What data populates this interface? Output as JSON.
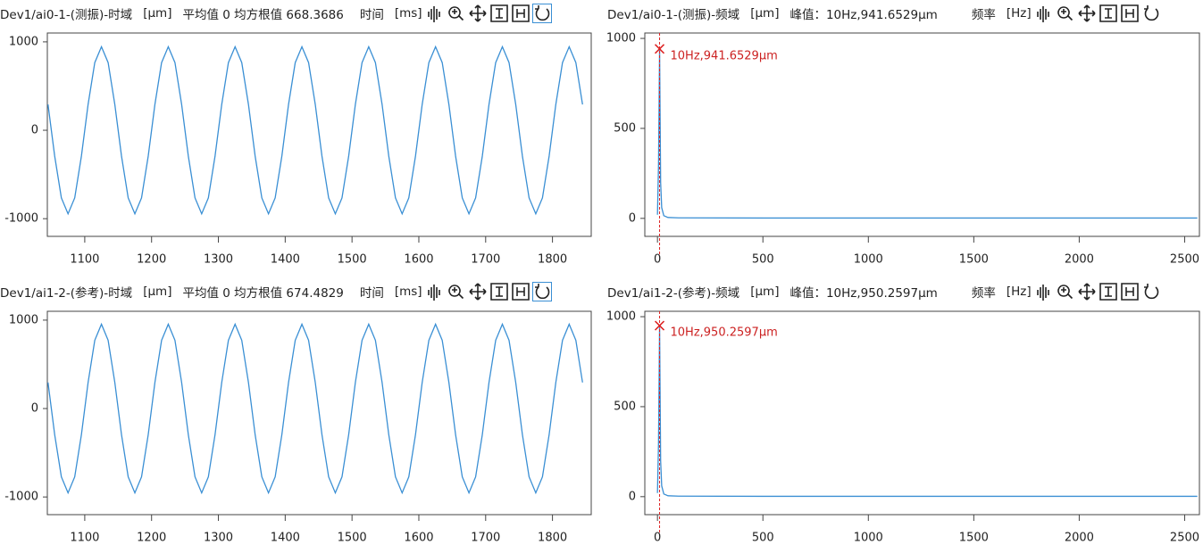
{
  "chart_data": [
    {
      "type": "line",
      "title": "Dev1/ai0-1-(测振)-时域",
      "unit": "[μm]",
      "info": "平均值 0 均方根值 668.3686",
      "x_label": "时间",
      "x_unit": "[ms]",
      "x": [
        1045,
        1055,
        1065,
        1075,
        1085,
        1095,
        1105,
        1115,
        1125,
        1135,
        1145,
        1155,
        1165,
        1175,
        1185,
        1195,
        1205,
        1215,
        1225,
        1235,
        1245,
        1255,
        1265,
        1275,
        1285,
        1295,
        1305,
        1315,
        1325,
        1335,
        1345,
        1355,
        1365,
        1375,
        1385,
        1395,
        1405,
        1415,
        1425,
        1435,
        1445,
        1455,
        1465,
        1475,
        1485,
        1495,
        1505,
        1515,
        1525,
        1535,
        1545,
        1555,
        1565,
        1575,
        1585,
        1595,
        1605,
        1615,
        1625,
        1635,
        1645,
        1655,
        1665,
        1675,
        1685,
        1695,
        1705,
        1715,
        1725,
        1735,
        1745,
        1755,
        1765,
        1775,
        1785,
        1795,
        1805,
        1815,
        1825,
        1835,
        1845
      ],
      "series": [
        {
          "color": "#3a8fd4",
          "values": [
            292,
            -292,
            -765,
            -945,
            -765,
            -292,
            292,
            765,
            945,
            765,
            292,
            -292,
            -765,
            -945,
            -765,
            -292,
            292,
            765,
            945,
            765,
            292,
            -292,
            -765,
            -945,
            -765,
            -292,
            292,
            765,
            945,
            765,
            292,
            -292,
            -765,
            -945,
            -765,
            -292,
            292,
            765,
            945,
            765,
            292,
            -292,
            -765,
            -945,
            -765,
            -292,
            292,
            765,
            945,
            765,
            292,
            -292,
            -765,
            -945,
            -765,
            -292,
            292,
            765,
            945,
            765,
            292,
            -292,
            -765,
            -945,
            -765,
            -292,
            292,
            765,
            945,
            765,
            292,
            -292,
            -765,
            -945,
            -765,
            -292,
            292,
            765,
            945,
            765,
            292
          ]
        }
      ],
      "xlim": [
        1044,
        1858
      ],
      "xticks": [
        1100,
        1200,
        1300,
        1400,
        1500,
        1600,
        1700,
        1800
      ],
      "ylim": [
        -1200,
        1100
      ],
      "yticks": [
        -1000,
        0,
        1000
      ]
    },
    {
      "type": "line",
      "title": "Dev1/ai0-1-(测振)-频域",
      "unit": "[μm]",
      "info": "峰值：10Hz,941.6529μm",
      "x_label": "频率",
      "x_unit": "[Hz]",
      "x": [
        0,
        5,
        10,
        15,
        20,
        30,
        50,
        100,
        500,
        1000,
        1500,
        2000,
        2560
      ],
      "series": [
        {
          "color": "#3a8fd4",
          "values": [
            20,
            300,
            941.6529,
            200,
            60,
            15,
            5,
            3,
            2,
            2,
            2,
            2,
            2
          ]
        }
      ],
      "peak": {
        "x": 10,
        "y": 941.6529,
        "label": "10Hz,941.6529μm"
      },
      "xlim": [
        -60,
        2570
      ],
      "xticks": [
        0,
        500,
        1000,
        1500,
        2000,
        2500
      ],
      "ylim": [
        -100,
        1030
      ],
      "yticks": [
        0,
        500,
        1000
      ]
    },
    {
      "type": "line",
      "title": "Dev1/ai1-2-(参考)-时域",
      "unit": "[μm]",
      "info": "平均值 0 均方根值 674.4829",
      "x_label": "时间",
      "x_unit": "[ms]",
      "x": [
        1045,
        1055,
        1065,
        1075,
        1085,
        1095,
        1105,
        1115,
        1125,
        1135,
        1145,
        1155,
        1165,
        1175,
        1185,
        1195,
        1205,
        1215,
        1225,
        1235,
        1245,
        1255,
        1265,
        1275,
        1285,
        1295,
        1305,
        1315,
        1325,
        1335,
        1345,
        1355,
        1365,
        1375,
        1385,
        1395,
        1405,
        1415,
        1425,
        1435,
        1445,
        1455,
        1465,
        1475,
        1485,
        1495,
        1505,
        1515,
        1525,
        1535,
        1545,
        1555,
        1565,
        1575,
        1585,
        1595,
        1605,
        1615,
        1625,
        1635,
        1645,
        1655,
        1665,
        1675,
        1685,
        1695,
        1705,
        1715,
        1725,
        1735,
        1745,
        1755,
        1765,
        1775,
        1785,
        1795,
        1805,
        1815,
        1825,
        1835,
        1845
      ],
      "series": [
        {
          "color": "#3a8fd4",
          "values": [
            295,
            -295,
            -772,
            -954,
            -772,
            -295,
            295,
            772,
            954,
            772,
            295,
            -295,
            -772,
            -954,
            -772,
            -295,
            295,
            772,
            954,
            772,
            295,
            -295,
            -772,
            -954,
            -772,
            -295,
            295,
            772,
            954,
            772,
            295,
            -295,
            -772,
            -954,
            -772,
            -295,
            295,
            772,
            954,
            772,
            295,
            -295,
            -772,
            -954,
            -772,
            -295,
            295,
            772,
            954,
            772,
            295,
            -295,
            -772,
            -954,
            -772,
            -295,
            295,
            772,
            954,
            772,
            295,
            -295,
            -772,
            -954,
            -772,
            -295,
            295,
            772,
            954,
            772,
            295,
            -295,
            -772,
            -954,
            -772,
            -295,
            295,
            772,
            954,
            772,
            295
          ]
        }
      ],
      "xlim": [
        1044,
        1858
      ],
      "xticks": [
        1100,
        1200,
        1300,
        1400,
        1500,
        1600,
        1700,
        1800
      ],
      "ylim": [
        -1200,
        1100
      ],
      "yticks": [
        -1000,
        0,
        1000
      ]
    },
    {
      "type": "line",
      "title": "Dev1/ai1-2-(参考)-频域",
      "unit": "[μm]",
      "info": "峰值：10Hz,950.2597μm",
      "x_label": "频率",
      "x_unit": "[Hz]",
      "x": [
        0,
        5,
        10,
        15,
        20,
        30,
        50,
        100,
        500,
        1000,
        1500,
        2000,
        2560
      ],
      "series": [
        {
          "color": "#3a8fd4",
          "values": [
            20,
            300,
            950.2597,
            200,
            60,
            15,
            5,
            3,
            2,
            2,
            2,
            2,
            2
          ]
        }
      ],
      "peak": {
        "x": 10,
        "y": 950.2597,
        "label": "10Hz,950.2597μm"
      },
      "xlim": [
        -60,
        2570
      ],
      "xticks": [
        0,
        500,
        1000,
        1500,
        2000,
        2500
      ],
      "ylim": [
        -100,
        1030
      ],
      "yticks": [
        0,
        500,
        1000
      ]
    }
  ]
}
